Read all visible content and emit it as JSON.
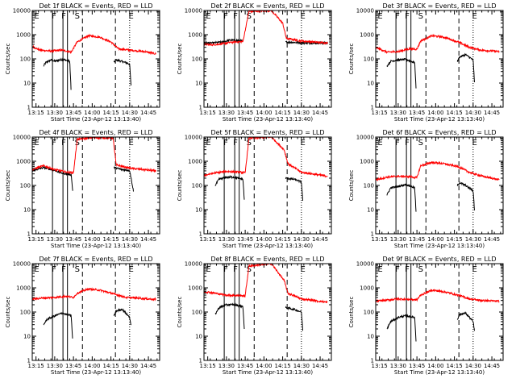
{
  "chart_data": {
    "type": "line",
    "layout": "3x3 grid",
    "xlabel": "Start Time (23-Apr-12 13:13:40)",
    "ylabel": "Counts/sec",
    "y_scale": "log",
    "ylim": [
      1,
      10000
    ],
    "y_ticks": [
      "1",
      "10",
      "100",
      "1000",
      "10000"
    ],
    "x_ticks": [
      "13:15",
      "13:30",
      "13:45",
      "14:00",
      "14:15",
      "14:30",
      "14:45"
    ],
    "x_minutes_range": [
      13.2,
      14.9
    ],
    "series_colors": {
      "events": "#000000",
      "lld": "#ff0000"
    },
    "markers": {
      "solid_lines": [
        13.47,
        13.61,
        13.67
      ],
      "dash_lines": [
        13.87,
        14.31
      ],
      "dot_lines": [
        14.5
      ],
      "letters": [
        {
          "text": "E",
          "t": 13.26
        },
        {
          "text": "F",
          "t": 13.49
        },
        {
          "text": "F",
          "t": 13.62
        },
        {
          "text": "S",
          "t": 13.8
        },
        {
          "text": "E",
          "t": 14.52
        }
      ]
    },
    "panels": [
      {
        "title": "Det 1f BLACK = Events, RED = LLD",
        "events": [
          [
            13.35,
            50
          ],
          [
            13.38,
            70
          ],
          [
            13.45,
            90
          ],
          [
            13.5,
            80
          ],
          [
            13.6,
            95
          ],
          [
            13.7,
            80
          ],
          [
            13.72,
            4
          ],
          [
            14.29,
            70
          ],
          [
            14.32,
            90
          ],
          [
            14.45,
            70
          ],
          [
            14.5,
            60
          ],
          [
            14.52,
            6
          ]
        ],
        "lld": [
          [
            13.2,
            330
          ],
          [
            13.3,
            230
          ],
          [
            13.45,
            210
          ],
          [
            13.6,
            230
          ],
          [
            13.72,
            190
          ],
          [
            13.8,
            500
          ],
          [
            13.95,
            900
          ],
          [
            14.1,
            800
          ],
          [
            14.25,
            500
          ],
          [
            14.35,
            260
          ],
          [
            14.5,
            230
          ],
          [
            14.7,
            200
          ],
          [
            14.85,
            160
          ]
        ]
      },
      {
        "title": "Det 2f BLACK = Events, RED = LLD",
        "events": [
          [
            13.2,
            460
          ],
          [
            13.3,
            450
          ],
          [
            13.45,
            500
          ],
          [
            13.55,
            600
          ],
          [
            13.72,
            550
          ],
          [
            14.29,
            500
          ],
          [
            14.4,
            480
          ],
          [
            14.6,
            450
          ],
          [
            14.85,
            450
          ]
        ],
        "lld": [
          [
            13.2,
            400
          ],
          [
            13.3,
            380
          ],
          [
            13.45,
            420
          ],
          [
            13.55,
            480
          ],
          [
            13.72,
            520
          ],
          [
            13.8,
            9000
          ],
          [
            14.1,
            10000
          ],
          [
            14.25,
            3000
          ],
          [
            14.3,
            700
          ],
          [
            14.5,
            550
          ],
          [
            14.85,
            450
          ]
        ]
      },
      {
        "title": "Det 3f BLACK = Events, RED = LLD",
        "events": [
          [
            13.35,
            50
          ],
          [
            13.4,
            80
          ],
          [
            13.5,
            90
          ],
          [
            13.6,
            95
          ],
          [
            13.72,
            70
          ],
          [
            13.74,
            5
          ],
          [
            14.29,
            80
          ],
          [
            14.32,
            120
          ],
          [
            14.4,
            150
          ],
          [
            14.5,
            90
          ],
          [
            14.52,
            8
          ]
        ],
        "lld": [
          [
            13.2,
            300
          ],
          [
            13.35,
            190
          ],
          [
            13.5,
            200
          ],
          [
            13.65,
            260
          ],
          [
            13.75,
            250
          ],
          [
            13.8,
            550
          ],
          [
            13.95,
            900
          ],
          [
            14.1,
            800
          ],
          [
            14.3,
            500
          ],
          [
            14.45,
            300
          ],
          [
            14.6,
            230
          ],
          [
            14.85,
            200
          ]
        ]
      },
      {
        "title": "Det 4f BLACK = Events, RED = LLD",
        "events": [
          [
            13.2,
            400
          ],
          [
            13.35,
            550
          ],
          [
            13.5,
            420
          ],
          [
            13.6,
            320
          ],
          [
            13.72,
            280
          ],
          [
            13.74,
            60
          ],
          [
            14.29,
            550
          ],
          [
            14.4,
            450
          ],
          [
            14.5,
            420
          ],
          [
            14.55,
            60
          ]
        ],
        "lld": [
          [
            13.2,
            450
          ],
          [
            13.35,
            650
          ],
          [
            13.5,
            450
          ],
          [
            13.65,
            360
          ],
          [
            13.75,
            330
          ],
          [
            13.8,
            8000
          ],
          [
            14.0,
            9500
          ],
          [
            14.28,
            9000
          ],
          [
            14.32,
            700
          ],
          [
            14.5,
            520
          ],
          [
            14.85,
            400
          ]
        ]
      },
      {
        "title": "Det 5f BLACK = Events, RED = LLD",
        "events": [
          [
            13.35,
            100
          ],
          [
            13.4,
            180
          ],
          [
            13.5,
            220
          ],
          [
            13.6,
            220
          ],
          [
            13.72,
            180
          ],
          [
            13.74,
            20
          ],
          [
            14.29,
            200
          ],
          [
            14.4,
            180
          ],
          [
            14.5,
            140
          ],
          [
            14.52,
            20
          ]
        ],
        "lld": [
          [
            13.2,
            260
          ],
          [
            13.35,
            330
          ],
          [
            13.5,
            380
          ],
          [
            13.65,
            360
          ],
          [
            13.75,
            330
          ],
          [
            13.8,
            9000
          ],
          [
            14.1,
            10000
          ],
          [
            14.27,
            3000
          ],
          [
            14.32,
            800
          ],
          [
            14.5,
            350
          ],
          [
            14.85,
            240
          ]
        ]
      },
      {
        "title": "Det 6f BLACK = Events, RED = LLD",
        "events": [
          [
            13.35,
            40
          ],
          [
            13.4,
            80
          ],
          [
            13.5,
            90
          ],
          [
            13.6,
            110
          ],
          [
            13.72,
            80
          ],
          [
            13.74,
            6
          ],
          [
            14.29,
            100
          ],
          [
            14.32,
            130
          ],
          [
            14.4,
            100
          ],
          [
            14.5,
            60
          ],
          [
            14.52,
            8
          ]
        ],
        "lld": [
          [
            13.2,
            170
          ],
          [
            13.35,
            220
          ],
          [
            13.5,
            240
          ],
          [
            13.65,
            230
          ],
          [
            13.75,
            210
          ],
          [
            13.8,
            650
          ],
          [
            13.95,
            900
          ],
          [
            14.1,
            800
          ],
          [
            14.3,
            600
          ],
          [
            14.45,
            350
          ],
          [
            14.6,
            250
          ],
          [
            14.85,
            170
          ]
        ]
      },
      {
        "title": "Det 7f BLACK = Events, RED = LLD",
        "events": [
          [
            13.35,
            30
          ],
          [
            13.4,
            50
          ],
          [
            13.5,
            70
          ],
          [
            13.6,
            90
          ],
          [
            13.72,
            70
          ],
          [
            13.74,
            6
          ],
          [
            14.29,
            70
          ],
          [
            14.32,
            110
          ],
          [
            14.4,
            130
          ],
          [
            14.5,
            60
          ],
          [
            14.52,
            25
          ]
        ],
        "lld": [
          [
            13.2,
            350
          ],
          [
            13.35,
            380
          ],
          [
            13.5,
            400
          ],
          [
            13.65,
            450
          ],
          [
            13.75,
            400
          ],
          [
            13.8,
            600
          ],
          [
            13.95,
            900
          ],
          [
            14.1,
            800
          ],
          [
            14.3,
            550
          ],
          [
            14.45,
            400
          ],
          [
            14.6,
            380
          ],
          [
            14.85,
            330
          ]
        ]
      },
      {
        "title": "Det 8f BLACK = Events, RED = LLD",
        "events": [
          [
            13.35,
            80
          ],
          [
            13.4,
            150
          ],
          [
            13.5,
            200
          ],
          [
            13.6,
            200
          ],
          [
            13.72,
            170
          ],
          [
            13.74,
            15
          ],
          [
            14.29,
            150
          ],
          [
            14.4,
            130
          ],
          [
            14.5,
            100
          ],
          [
            14.52,
            15
          ]
        ],
        "lld": [
          [
            13.2,
            700
          ],
          [
            13.35,
            600
          ],
          [
            13.5,
            500
          ],
          [
            13.65,
            480
          ],
          [
            13.75,
            470
          ],
          [
            13.8,
            8000
          ],
          [
            14.1,
            10000
          ],
          [
            14.27,
            2000
          ],
          [
            14.32,
            600
          ],
          [
            14.5,
            350
          ],
          [
            14.85,
            250
          ]
        ]
      },
      {
        "title": "Det 9f BLACK = Events, RED = LLD",
        "events": [
          [
            13.35,
            20
          ],
          [
            13.4,
            40
          ],
          [
            13.5,
            60
          ],
          [
            13.6,
            70
          ],
          [
            13.72,
            60
          ],
          [
            13.74,
            5
          ],
          [
            14.29,
            50
          ],
          [
            14.32,
            80
          ],
          [
            14.4,
            90
          ],
          [
            14.5,
            40
          ],
          [
            14.52,
            15
          ]
        ],
        "lld": [
          [
            13.2,
            280
          ],
          [
            13.35,
            310
          ],
          [
            13.5,
            350
          ],
          [
            13.65,
            330
          ],
          [
            13.75,
            320
          ],
          [
            13.8,
            500
          ],
          [
            13.95,
            800
          ],
          [
            14.1,
            700
          ],
          [
            14.3,
            500
          ],
          [
            14.45,
            350
          ],
          [
            14.6,
            300
          ],
          [
            14.85,
            280
          ]
        ]
      }
    ]
  }
}
